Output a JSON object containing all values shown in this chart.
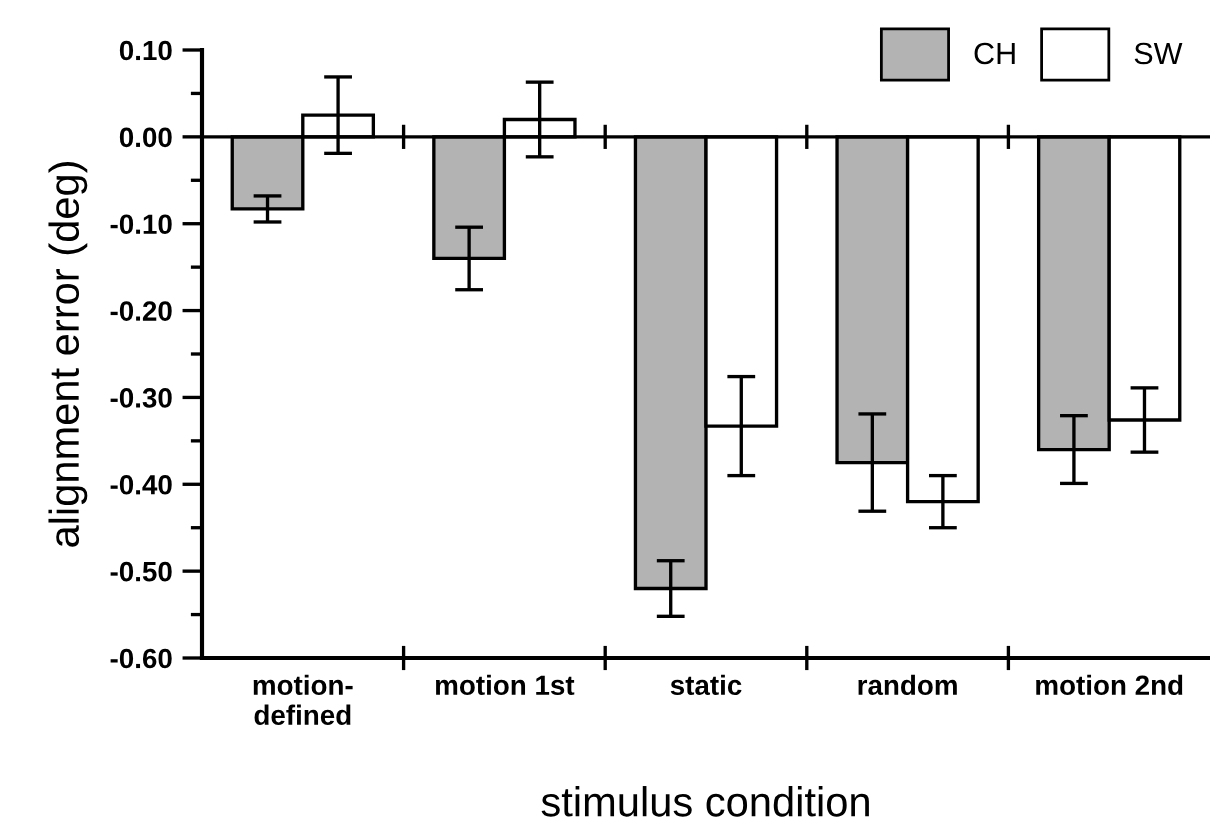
{
  "chart_data": {
    "type": "bar",
    "xlabel": "stimulus condition",
    "ylabel": "alignment error (deg)",
    "categories": [
      "motion-\ndefined",
      "motion 1st",
      "static",
      "random",
      "motion 2nd"
    ],
    "series": [
      {
        "name": "CH",
        "color": "#b3b3b3",
        "values": [
          -0.083,
          -0.14,
          -0.52,
          -0.375,
          -0.36
        ],
        "errors": [
          0.015,
          0.036,
          0.032,
          0.056,
          0.039
        ]
      },
      {
        "name": "SW",
        "color": "#ffffff",
        "values": [
          0.025,
          0.02,
          -0.333,
          -0.42,
          -0.326
        ],
        "errors": [
          0.044,
          0.043,
          0.057,
          0.03,
          0.037
        ]
      }
    ],
    "ylim": [
      -0.6,
      0.1
    ],
    "yticks": [
      {
        "value": -0.6,
        "label": "-0.60"
      },
      {
        "value": -0.5,
        "label": "-0.50"
      },
      {
        "value": -0.4,
        "label": "-0.40"
      },
      {
        "value": -0.3,
        "label": "-0.30"
      },
      {
        "value": -0.2,
        "label": "-0.20"
      },
      {
        "value": -0.1,
        "label": "-0.10"
      },
      {
        "value": 0,
        "label": "0.00"
      },
      {
        "value": 0.1,
        "label": "0.10"
      }
    ],
    "ref_lines": [
      {
        "axis": "y",
        "value": 0,
        "color": "#000000"
      }
    ],
    "grid": false,
    "legend": "top right"
  }
}
